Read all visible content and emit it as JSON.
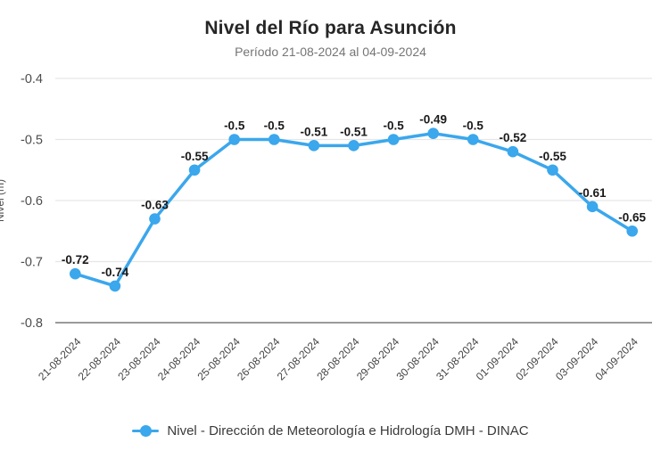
{
  "colors": {
    "accent": "#3BA7EC",
    "grid": "#e6e6e6",
    "axis": "#9a9a9a",
    "title": "#262626",
    "subtitle": "#757575",
    "ytick": "#4d4d4d",
    "xtick": "#444444",
    "datalabel": "#1a1a1a",
    "legend_text": "#3a3a3a"
  },
  "chart_data": {
    "type": "line",
    "title": "Nivel del Río para Asunción",
    "subtitle": "Período 21-08-2024 al 04-09-2024",
    "xlabel": "",
    "ylabel": "Nivel (m)",
    "ylim": [
      -0.8,
      -0.4
    ],
    "yticks": [
      -0.4,
      -0.5,
      -0.6,
      -0.7,
      -0.8
    ],
    "grid": true,
    "legend_position": "bottom",
    "datalabels": true,
    "categories": [
      "21-08-2024",
      "22-08-2024",
      "23-08-2024",
      "24-08-2024",
      "25-08-2024",
      "26-08-2024",
      "27-08-2024",
      "28-08-2024",
      "29-08-2024",
      "30-08-2024",
      "31-08-2024",
      "01-09-2024",
      "02-09-2024",
      "03-09-2024",
      "04-09-2024"
    ],
    "series": [
      {
        "name": "Nivel - Dirección de Meteorología e Hidrología DMH - DINAC",
        "color": "#3BA7EC",
        "values": [
          -0.72,
          -0.74,
          -0.63,
          -0.55,
          -0.5,
          -0.5,
          -0.51,
          -0.51,
          -0.5,
          -0.49,
          -0.5,
          -0.52,
          -0.55,
          -0.61,
          -0.65
        ]
      }
    ]
  }
}
